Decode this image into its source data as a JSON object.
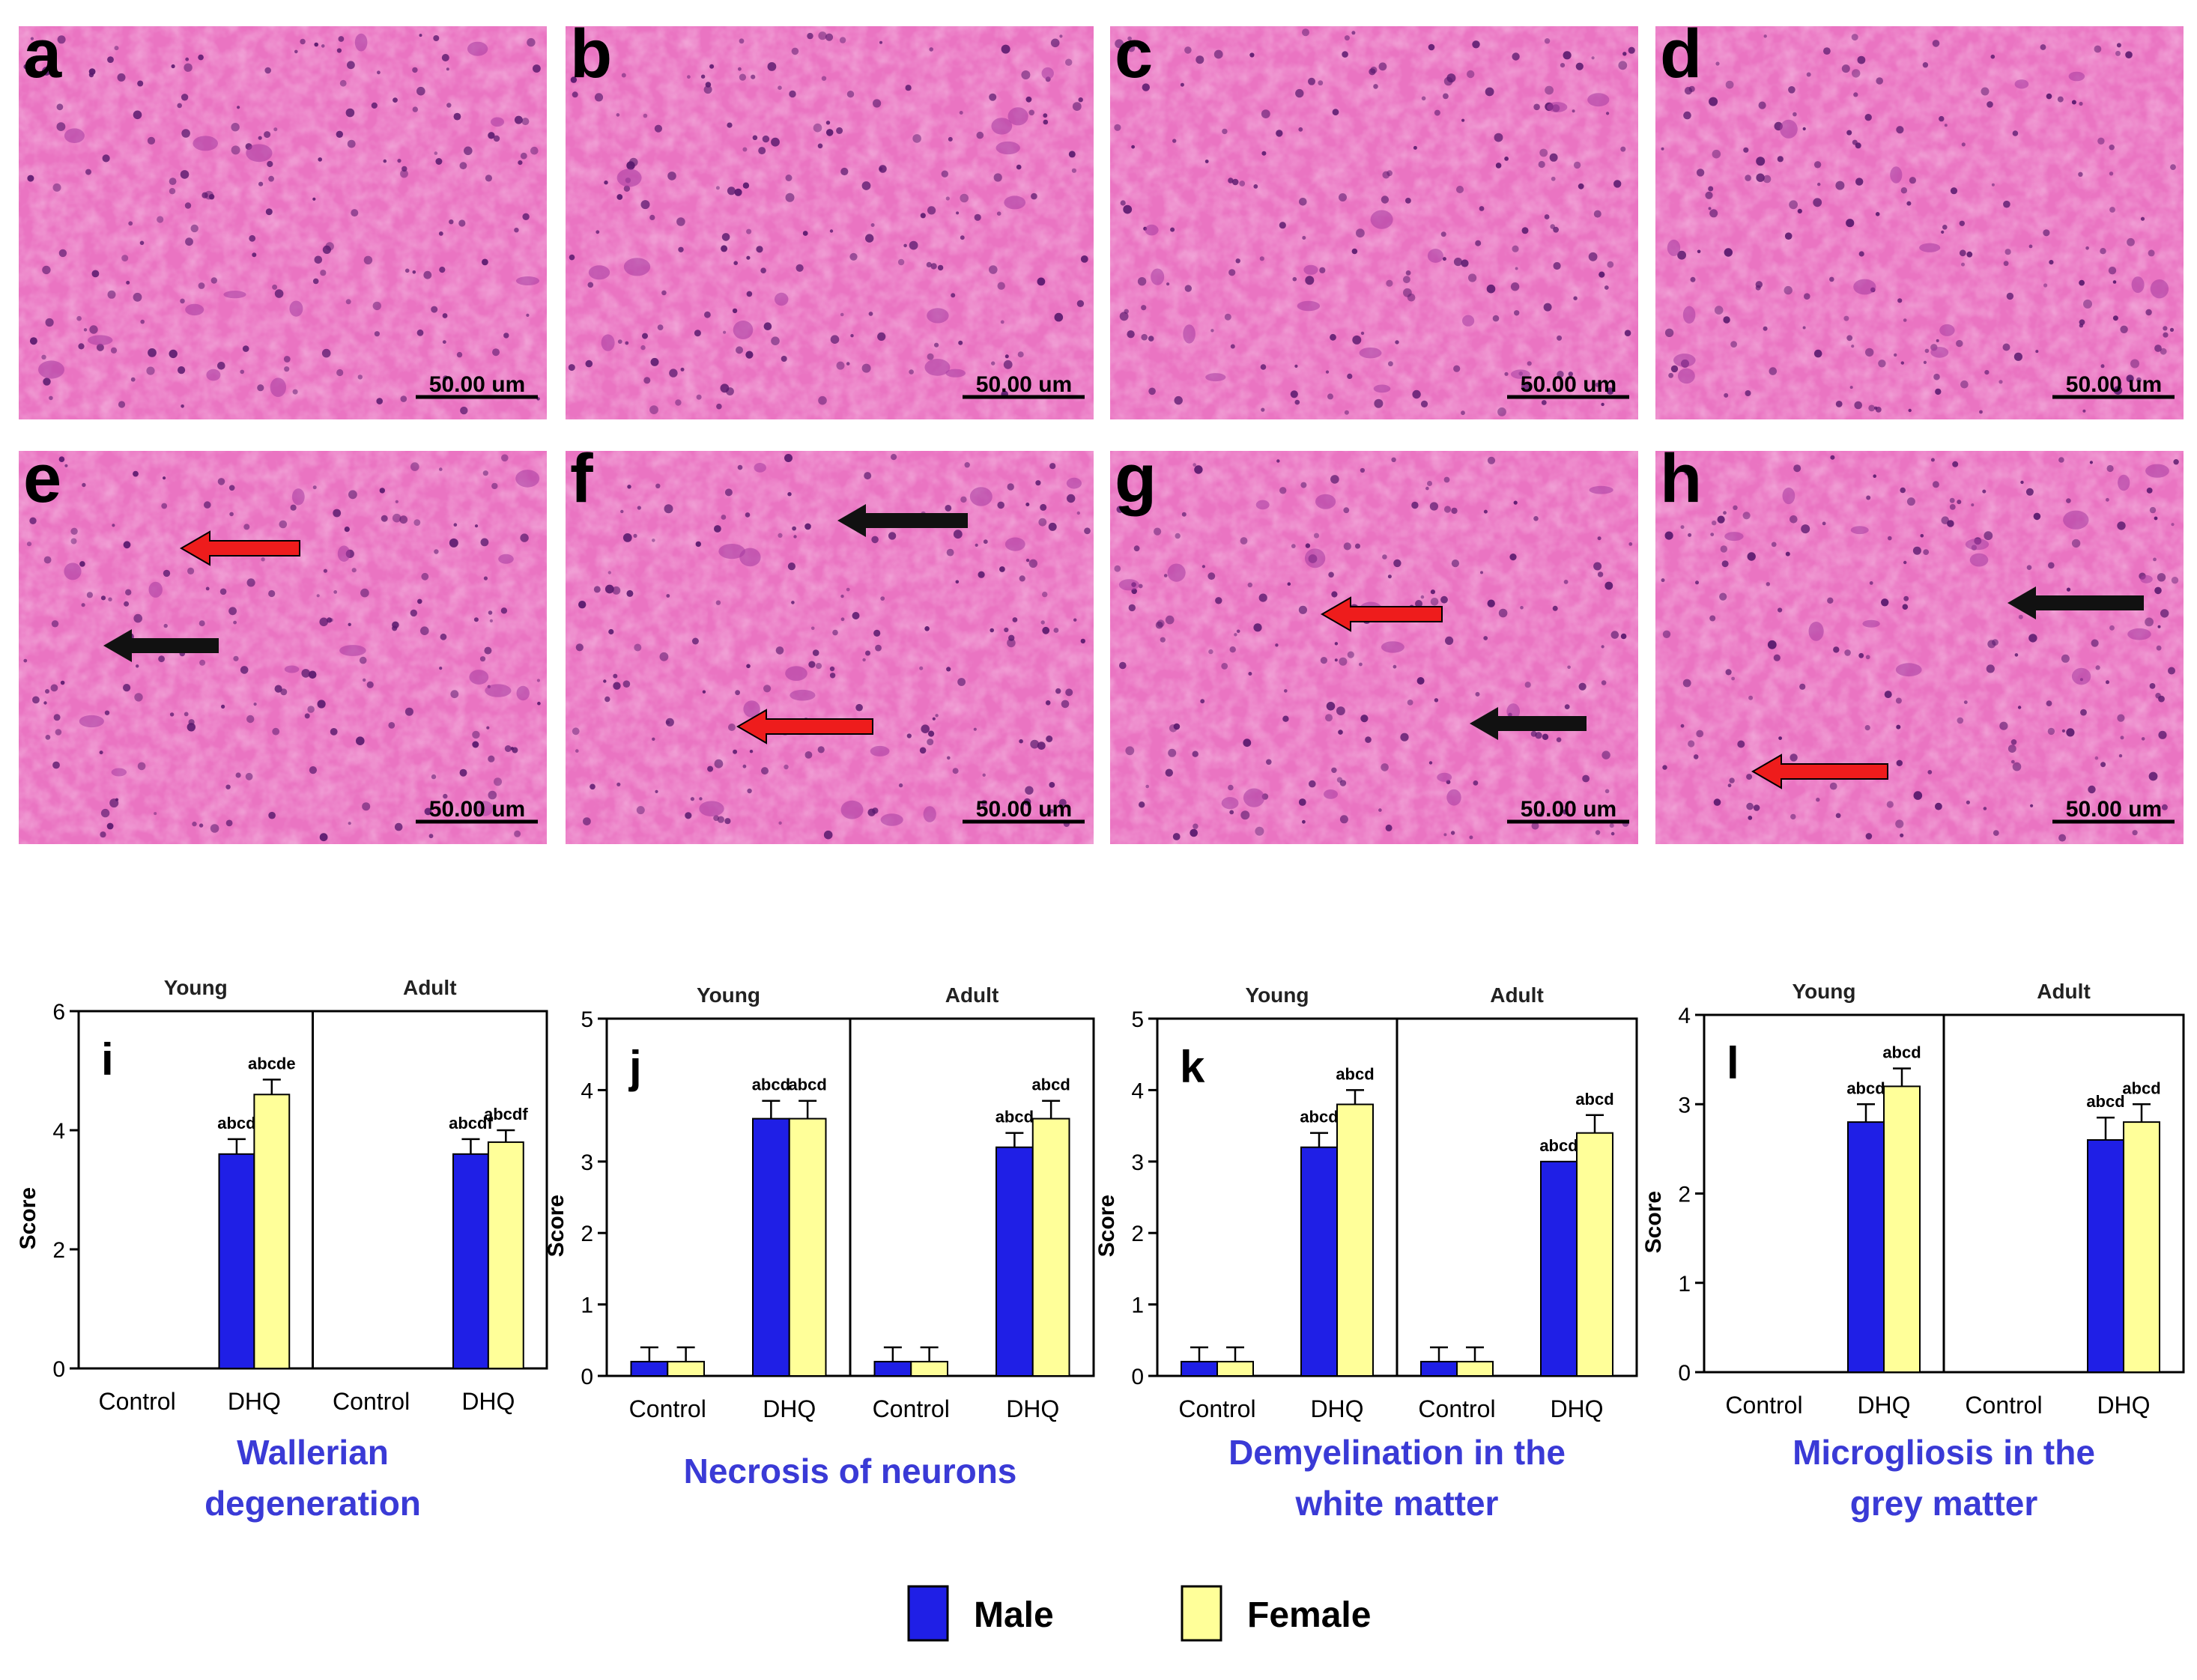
{
  "panels": [
    {
      "letter": "a",
      "scale": "50.00 um",
      "arrows": []
    },
    {
      "letter": "b",
      "scale": "50.00 um",
      "arrows": []
    },
    {
      "letter": "c",
      "scale": "50.00 um",
      "arrows": []
    },
    {
      "letter": "d",
      "scale": "50.00 um",
      "arrows": []
    },
    {
      "letter": "e",
      "scale": "50.00 um",
      "arrows": [
        {
          "color": "red"
        },
        {
          "color": "black"
        }
      ]
    },
    {
      "letter": "f",
      "scale": "50.00 um",
      "arrows": [
        {
          "color": "black"
        },
        {
          "color": "red"
        }
      ]
    },
    {
      "letter": "g",
      "scale": "50.00 um",
      "arrows": [
        {
          "color": "red"
        },
        {
          "color": "black"
        }
      ]
    },
    {
      "letter": "h",
      "scale": "50.00 um",
      "arrows": [
        {
          "color": "black"
        },
        {
          "color": "red"
        }
      ]
    }
  ],
  "colors": {
    "tissue_bg": "#ea74c2",
    "tissue_light": "#f6b6e2",
    "nuclei": "#5a1a6e",
    "male": "#1f1fe6",
    "female": "#ffff99",
    "caption": "#3a3ad6",
    "arrow_red": "#ee1c1c",
    "arrow_black": "#111111"
  },
  "legend": [
    {
      "label": "Male",
      "color": "#1f1fe6"
    },
    {
      "label": "Female",
      "color": "#ffff99"
    }
  ],
  "chart_data": [
    {
      "type": "bar",
      "letter": "i",
      "caption": [
        "Wallerian",
        "degeneration"
      ],
      "ylabel": "Score",
      "ylim": [
        0,
        6
      ],
      "yticks": [
        0,
        2,
        4,
        6
      ],
      "groups": [
        "Young",
        "Adult"
      ],
      "categories": [
        "Control",
        "DHQ",
        "Control",
        "DHQ"
      ],
      "series": [
        {
          "name": "Male",
          "values": [
            0,
            3.6,
            0,
            3.6
          ],
          "errors": [
            0,
            0.25,
            0,
            0.25
          ],
          "labels": [
            "",
            "abcd",
            "",
            "abcdf"
          ]
        },
        {
          "name": "Female",
          "values": [
            0,
            4.6,
            0,
            3.8
          ],
          "errors": [
            0,
            0.25,
            0,
            0.2
          ],
          "labels": [
            "",
            "abcde",
            "",
            "abcdf"
          ]
        }
      ]
    },
    {
      "type": "bar",
      "letter": "j",
      "caption": [
        "Necrosis of neurons"
      ],
      "ylabel": "Score",
      "ylim": [
        0,
        5
      ],
      "yticks": [
        0,
        1,
        2,
        3,
        4,
        5
      ],
      "groups": [
        "Young",
        "Adult"
      ],
      "categories": [
        "Control",
        "DHQ",
        "Control",
        "DHQ"
      ],
      "series": [
        {
          "name": "Male",
          "values": [
            0.2,
            3.6,
            0.2,
            3.2
          ],
          "errors": [
            0.2,
            0.25,
            0.2,
            0.2
          ],
          "labels": [
            "",
            "abcd",
            "",
            "abcd"
          ]
        },
        {
          "name": "Female",
          "values": [
            0.2,
            3.6,
            0.2,
            3.6
          ],
          "errors": [
            0.2,
            0.25,
            0.2,
            0.25
          ],
          "labels": [
            "",
            "abcd",
            "",
            "abcd"
          ]
        }
      ]
    },
    {
      "type": "bar",
      "letter": "k",
      "caption": [
        "Demyelination in the",
        "white matter"
      ],
      "ylabel": "Score",
      "ylim": [
        0,
        5
      ],
      "yticks": [
        0,
        1,
        2,
        3,
        4,
        5
      ],
      "groups": [
        "Young",
        "Adult"
      ],
      "categories": [
        "Control",
        "DHQ",
        "Control",
        "DHQ"
      ],
      "series": [
        {
          "name": "Male",
          "values": [
            0.2,
            3.2,
            0.2,
            3.0
          ],
          "errors": [
            0.2,
            0.2,
            0.2,
            0
          ],
          "labels": [
            "",
            "abcd",
            "",
            "abcd"
          ]
        },
        {
          "name": "Female",
          "values": [
            0.2,
            3.8,
            0.2,
            3.4
          ],
          "errors": [
            0.2,
            0.2,
            0.2,
            0.25
          ],
          "labels": [
            "",
            "abcd",
            "",
            "abcd"
          ]
        }
      ]
    },
    {
      "type": "bar",
      "letter": "l",
      "caption": [
        "Microgliosis in the",
        "grey matter"
      ],
      "ylabel": "Score",
      "ylim": [
        0,
        4
      ],
      "yticks": [
        0,
        1,
        2,
        3,
        4
      ],
      "groups": [
        "Young",
        "Adult"
      ],
      "categories": [
        "Control",
        "DHQ",
        "Control",
        "DHQ"
      ],
      "series": [
        {
          "name": "Male",
          "values": [
            0,
            2.8,
            0,
            2.6
          ],
          "errors": [
            0,
            0.2,
            0,
            0.25
          ],
          "labels": [
            "",
            "abcd",
            "",
            "abcd"
          ]
        },
        {
          "name": "Female",
          "values": [
            0,
            3.2,
            0,
            2.8
          ],
          "errors": [
            0,
            0.2,
            0,
            0.2
          ],
          "labels": [
            "",
            "abcd",
            "",
            "abcd"
          ]
        }
      ]
    }
  ]
}
